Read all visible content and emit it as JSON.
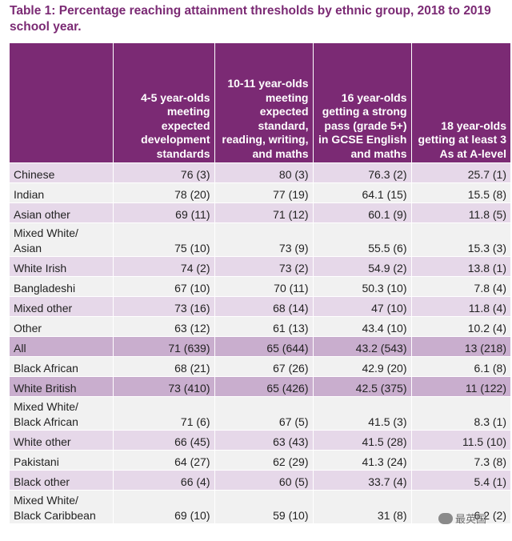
{
  "title": "Table 1: Percentage reaching attainment thresholds by ethnic group, 2018 to 2019 school year.",
  "headers": [
    "",
    "4-5 year-olds meeting expected development standards",
    "10-11 year-olds meeting expected standard, reading, writing, and maths",
    "16 year-olds getting a strong pass (grade 5+) in GCSE English and maths",
    "18 year-olds getting at least 3 As at A-level"
  ],
  "rows": [
    {
      "label": "Chinese",
      "c1": "76 (3)",
      "c2": "80 (3)",
      "c3": "76.3 (2)",
      "c4": "25.7 (1)"
    },
    {
      "label": "Indian",
      "c1": "78 (20)",
      "c2": "77 (19)",
      "c3": "64.1 (15)",
      "c4": "15.5 (8)"
    },
    {
      "label": "Asian other",
      "c1": "69 (11)",
      "c2": "71 (12)",
      "c3": "60.1 (9)",
      "c4": "11.8 (5)"
    },
    {
      "label": "Mixed White/ Asian",
      "c1": "75 (10)",
      "c2": "73 (9)",
      "c3": "55.5 (6)",
      "c4": "15.3 (3)"
    },
    {
      "label": "White Irish",
      "c1": "74 (2)",
      "c2": "73 (2)",
      "c3": "54.9 (2)",
      "c4": "13.8 (1)"
    },
    {
      "label": "Bangladeshi",
      "c1": "67 (10)",
      "c2": "70 (11)",
      "c3": "50.3 (10)",
      "c4": "7.8 (4)"
    },
    {
      "label": "Mixed other",
      "c1": "73 (16)",
      "c2": "68 (14)",
      "c3": "47 (10)",
      "c4": "11.8 (4)"
    },
    {
      "label": "Other",
      "c1": "63 (12)",
      "c2": "61 (13)",
      "c3": "43.4 (10)",
      "c4": "10.2 (4)"
    },
    {
      "label": "All",
      "c1": "71 (639)",
      "c2": "65 (644)",
      "c3": "43.2 (543)",
      "c4": "13 (218)"
    },
    {
      "label": "Black African",
      "c1": "68 (21)",
      "c2": "67 (26)",
      "c3": "42.9 (20)",
      "c4": "6.1 (8)"
    },
    {
      "label": "White British",
      "c1": "73 (410)",
      "c2": "65 (426)",
      "c3": "42.5 (375)",
      "c4": "11 (122)"
    },
    {
      "label": "Mixed White/ Black African",
      "c1": "71 (6)",
      "c2": "67 (5)",
      "c3": "41.5 (3)",
      "c4": "8.3 (1)"
    },
    {
      "label": "White other",
      "c1": "66 (45)",
      "c2": "63 (43)",
      "c3": "41.5 (28)",
      "c4": "11.5 (10)"
    },
    {
      "label": "Pakistani",
      "c1": "64 (27)",
      "c2": "62 (29)",
      "c3": "41.3 (24)",
      "c4": "7.3 (8)"
    },
    {
      "label": "Black other",
      "c1": "66 (4)",
      "c2": "60 (5)",
      "c3": "33.7 (4)",
      "c4": "5.4 (1)"
    },
    {
      "label": "Mixed White/ Black Caribbean",
      "c1": "69 (10)",
      "c2": "59 (10)",
      "c3": "31 (8)",
      "c4": "6.2 (2)"
    }
  ],
  "watermark": "最英国"
}
